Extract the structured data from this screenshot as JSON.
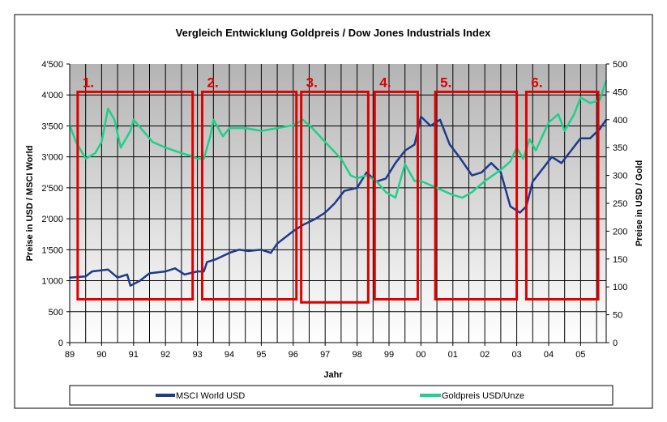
{
  "chart_data": {
    "type": "line",
    "title": "Vergleich Entwicklung Goldpreis / Dow Jones Industrials Index",
    "xlabel": "Jahr",
    "ylabel_left": "Preise in USD / MSCI World",
    "ylabel_right": "Preise in USD / Gold",
    "x_ticks": [
      "89",
      "90",
      "91",
      "92",
      "93",
      "94",
      "95",
      "96",
      "97",
      "98",
      "99",
      "00",
      "01",
      "02",
      "03",
      "04",
      "05"
    ],
    "y_left_ticks": [
      "0",
      "500",
      "1'000",
      "1'500",
      "2'000",
      "2'500",
      "3'000",
      "3'500",
      "4'000",
      "4'500"
    ],
    "y_right_ticks": [
      "0",
      "50",
      "100",
      "150",
      "200",
      "250",
      "300",
      "350",
      "400",
      "450",
      "500"
    ],
    "ylim_left": [
      0,
      4500
    ],
    "ylim_right": [
      0,
      500
    ],
    "xlim": [
      1989,
      2005.8
    ],
    "grid": true,
    "legend_position": "bottom",
    "series": [
      {
        "name": "MSCI World USD",
        "axis": "left",
        "color": "#1f3a8a",
        "x": [
          1989,
          1989.5,
          1989.7,
          1990.2,
          1990.5,
          1990.8,
          1990.9,
          1991.2,
          1991.5,
          1992,
          1992.3,
          1992.6,
          1993,
          1993.2,
          1993.3,
          1993.6,
          1994,
          1994.3,
          1994.6,
          1995,
          1995.3,
          1995.5,
          1996,
          1996.3,
          1996.7,
          1997,
          1997.3,
          1997.6,
          1998,
          1998.3,
          1998.6,
          1998.9,
          1999.2,
          1999.5,
          1999.8,
          2000,
          2000.3,
          2000.6,
          2000.9,
          2001.2,
          2001.6,
          2001.9,
          2002.2,
          2002.5,
          2002.8,
          2003.1,
          2003.3,
          2003.5,
          2003.8,
          2004.1,
          2004.4,
          2004.7,
          2005,
          2005.3,
          2005.6,
          2005.8
        ],
        "values": [
          1050,
          1070,
          1150,
          1180,
          1050,
          1100,
          920,
          1000,
          1120,
          1150,
          1200,
          1100,
          1150,
          1150,
          1300,
          1350,
          1450,
          1500,
          1480,
          1500,
          1450,
          1600,
          1800,
          1900,
          2000,
          2100,
          2250,
          2450,
          2500,
          2750,
          2600,
          2650,
          2900,
          3100,
          3200,
          3650,
          3500,
          3600,
          3200,
          3000,
          2700,
          2750,
          2900,
          2750,
          2200,
          2100,
          2200,
          2600,
          2800,
          3000,
          2900,
          3100,
          3300,
          3300,
          3450,
          3600
        ]
      },
      {
        "name": "Goldpreis USD/Unze",
        "axis": "right",
        "color": "#1fd08a",
        "x": [
          1989,
          1989.2,
          1989.5,
          1989.8,
          1990,
          1990.2,
          1990.4,
          1990.6,
          1990.9,
          1991,
          1991.3,
          1991.6,
          1992,
          1992.5,
          1992.8,
          1993,
          1993.2,
          1993.4,
          1993.5,
          1993.8,
          1994,
          1994.5,
          1995,
          1995.5,
          1996,
          1996.3,
          1996.6,
          1997,
          1997.5,
          1997.8,
          1998,
          1998.3,
          1998.6,
          1998.9,
          1999.2,
          1999.5,
          1999.8,
          2000,
          2000.2,
          2000.6,
          2001,
          2001.3,
          2001.6,
          2002,
          2002.5,
          2002.8,
          2003,
          2003.2,
          2003.4,
          2003.6,
          2004,
          2004.3,
          2004.5,
          2004.8,
          2005,
          2005.3,
          2005.6,
          2005.8
        ],
        "values": [
          390,
          360,
          330,
          340,
          360,
          420,
          400,
          350,
          380,
          400,
          380,
          360,
          350,
          340,
          335,
          330,
          330,
          370,
          400,
          370,
          385,
          385,
          380,
          385,
          390,
          400,
          385,
          360,
          330,
          300,
          295,
          300,
          290,
          270,
          260,
          320,
          290,
          290,
          285,
          275,
          265,
          260,
          270,
          290,
          310,
          325,
          350,
          330,
          365,
          345,
          395,
          410,
          380,
          410,
          440,
          430,
          435,
          470
        ]
      }
    ],
    "annotations": [
      {
        "label": "1.",
        "x": [
          1989.25,
          1992.85
        ],
        "y": [
          700,
          4050
        ]
      },
      {
        "label": "2.",
        "x": [
          1993.15,
          1996.1
        ],
        "y": [
          700,
          4050
        ]
      },
      {
        "label": "3.",
        "x": [
          1996.25,
          1998.35
        ],
        "y": [
          650,
          4050
        ]
      },
      {
        "label": "4.",
        "x": [
          1998.55,
          1999.9
        ],
        "y": [
          700,
          4050
        ]
      },
      {
        "label": "5.",
        "x": [
          2000.45,
          2003.0
        ],
        "y": [
          700,
          4050
        ]
      },
      {
        "label": "6.",
        "x": [
          2003.3,
          2005.55
        ],
        "y": [
          700,
          4050
        ]
      }
    ],
    "box_color": "#e00000"
  }
}
